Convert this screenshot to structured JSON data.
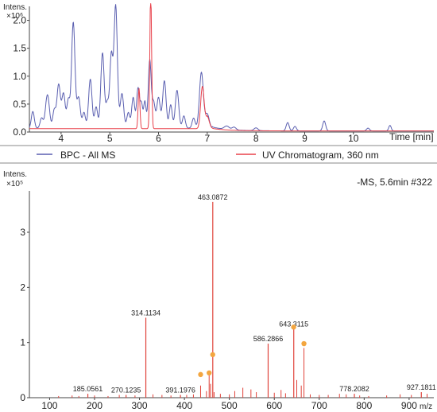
{
  "colors": {
    "bpc": "#5a5fb0",
    "uv": "#e8404a",
    "ms": "#e0423a",
    "marker": "#f3a640",
    "axis": "#444444"
  },
  "chart_data": [
    {
      "type": "line",
      "ylabel": "Intens.",
      "yexp": "×10⁶",
      "xlabel": "Time [min]",
      "xlim": [
        3.35,
        11.65
      ],
      "ylim": [
        0,
        2.25
      ],
      "xticks": [
        "4",
        "5",
        "6",
        "7",
        "8",
        "9",
        "10"
      ],
      "yticks": [
        "0.0",
        "0.5",
        "1.0",
        "1.5",
        "2.0"
      ],
      "legend_position": "bottom",
      "series": [
        {
          "name": "BPC - All MS",
          "color": "#5a5fb0",
          "baseline": 0.07,
          "peaks": [
            [
              3.42,
              0.3,
              0.03
            ],
            [
              3.6,
              0.18,
              0.03
            ],
            [
              3.72,
              0.6,
              0.04
            ],
            [
              3.86,
              0.32,
              0.03
            ],
            [
              3.95,
              0.78,
              0.035
            ],
            [
              4.05,
              0.62,
              0.035
            ],
            [
              4.15,
              0.5,
              0.03
            ],
            [
              4.25,
              1.9,
              0.035
            ],
            [
              4.36,
              0.55,
              0.035
            ],
            [
              4.47,
              0.28,
              0.03
            ],
            [
              4.6,
              0.88,
              0.035
            ],
            [
              4.72,
              0.38,
              0.03
            ],
            [
              4.85,
              1.35,
              0.035
            ],
            [
              4.95,
              0.45,
              0.03
            ],
            [
              5.03,
              1.28,
              0.03
            ],
            [
              5.12,
              2.2,
              0.035
            ],
            [
              5.25,
              0.62,
              0.035
            ],
            [
              5.38,
              0.28,
              0.03
            ],
            [
              5.48,
              0.55,
              0.03
            ],
            [
              5.58,
              0.72,
              0.03
            ],
            [
              5.65,
              0.42,
              0.025
            ],
            [
              5.72,
              0.48,
              0.025
            ],
            [
              5.82,
              1.22,
              0.03
            ],
            [
              5.9,
              0.45,
              0.03
            ],
            [
              6.0,
              0.55,
              0.035
            ],
            [
              6.12,
              0.85,
              0.035
            ],
            [
              6.25,
              0.42,
              0.03
            ],
            [
              6.38,
              0.68,
              0.035
            ],
            [
              6.52,
              0.22,
              0.03
            ],
            [
              6.72,
              0.18,
              0.03
            ],
            [
              6.88,
              1.0,
              0.04
            ],
            [
              7.0,
              0.25,
              0.04
            ],
            [
              7.4,
              0.06,
              0.05
            ],
            [
              7.55,
              0.05,
              0.04
            ],
            [
              8.0,
              0.05,
              0.04
            ],
            [
              8.65,
              0.15,
              0.03
            ],
            [
              8.8,
              0.08,
              0.03
            ],
            [
              9.4,
              0.18,
              0.03
            ],
            [
              10.3,
              0.05,
              0.03
            ],
            [
              10.75,
              0.1,
              0.025
            ]
          ],
          "decay_end": 7.1
        },
        {
          "name": "UV Chromatogram, 360 nm",
          "color": "#e8404a",
          "baseline": 0.06,
          "peaks": [
            [
              5.6,
              0.72,
              0.018
            ],
            [
              5.84,
              2.45,
              0.018
            ],
            [
              6.9,
              0.75,
              0.035
            ],
            [
              7.0,
              0.2,
              0.04
            ]
          ],
          "decay_end": 7.0
        }
      ]
    },
    {
      "type": "bar",
      "ylabel": "Intens.",
      "yexp": "×10⁵",
      "xlabel": "m/z",
      "annotation": "-MS, 5.6min #322",
      "xlim": [
        55,
        955
      ],
      "ylim": [
        0,
        3.75
      ],
      "xticks": [
        "100",
        "200",
        "300",
        "400",
        "500",
        "600",
        "700",
        "800",
        "900"
      ],
      "yticks": [
        "0",
        "1",
        "2",
        "3"
      ],
      "labeled_peaks": [
        {
          "mz": 185.0561,
          "intensity": 0.07,
          "label": "185.0561"
        },
        {
          "mz": 270.1235,
          "intensity": 0.05,
          "label": "270.1235"
        },
        {
          "mz": 314.1134,
          "intensity": 1.45,
          "label": "314.1134"
        },
        {
          "mz": 391.1976,
          "intensity": 0.05,
          "label": "391.1976"
        },
        {
          "mz": 463.0872,
          "intensity": 3.55,
          "label": "463.0872"
        },
        {
          "mz": 586.2866,
          "intensity": 0.98,
          "label": "586.2866"
        },
        {
          "mz": 643.3115,
          "intensity": 1.25,
          "label": "643.3115"
        },
        {
          "mz": 778.2082,
          "intensity": 0.07,
          "label": "778.2082"
        },
        {
          "mz": 927.1811,
          "intensity": 0.1,
          "label": "927.1811"
        }
      ],
      "minor_peaks": [
        [
          120,
          0.03
        ],
        [
          150,
          0.04
        ],
        [
          165,
          0.03
        ],
        [
          200,
          0.04
        ],
        [
          230,
          0.03
        ],
        [
          255,
          0.05
        ],
        [
          290,
          0.04
        ],
        [
          330,
          0.06
        ],
        [
          350,
          0.05
        ],
        [
          370,
          0.04
        ],
        [
          405,
          0.05
        ],
        [
          420,
          0.06
        ],
        [
          436,
          0.22
        ],
        [
          449,
          0.12
        ],
        [
          455,
          0.45
        ],
        [
          458,
          0.25
        ],
        [
          466,
          0.1
        ],
        [
          480,
          0.07
        ],
        [
          500,
          0.06
        ],
        [
          512,
          0.12
        ],
        [
          530,
          0.18
        ],
        [
          548,
          0.15
        ],
        [
          560,
          0.1
        ],
        [
          600,
          0.09
        ],
        [
          615,
          0.14
        ],
        [
          625,
          0.08
        ],
        [
          650,
          0.32
        ],
        [
          660,
          0.22
        ],
        [
          666,
          0.9
        ],
        [
          680,
          0.06
        ],
        [
          700,
          0.05
        ],
        [
          720,
          0.05
        ],
        [
          745,
          0.07
        ],
        [
          760,
          0.06
        ],
        [
          790,
          0.04
        ],
        [
          810,
          0.03
        ],
        [
          850,
          0.04
        ],
        [
          880,
          0.06
        ],
        [
          905,
          0.05
        ],
        [
          940,
          0.07
        ]
      ],
      "markers": [
        {
          "mz": 436,
          "intensity": 0.42
        },
        {
          "mz": 455,
          "intensity": 0.45
        },
        {
          "mz": 463,
          "intensity": 0.78
        },
        {
          "mz": 643,
          "intensity": 1.28
        },
        {
          "mz": 666,
          "intensity": 0.98
        }
      ]
    }
  ]
}
